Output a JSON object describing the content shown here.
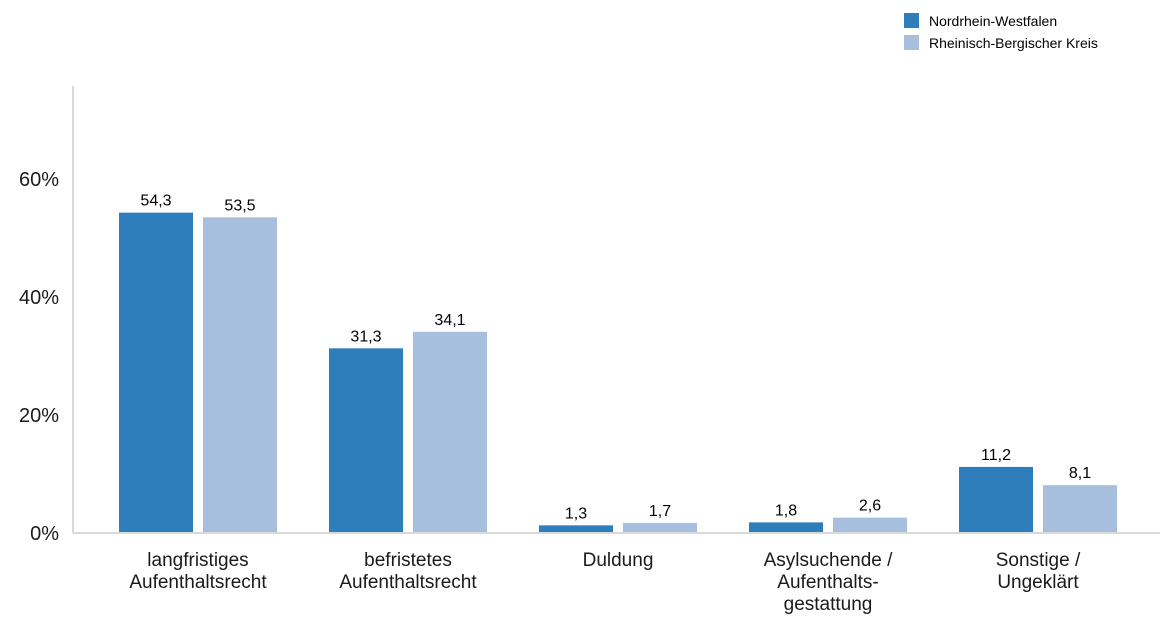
{
  "chart_data": {
    "type": "bar",
    "categories": [
      [
        "langfristiges",
        "Aufenthaltsrecht"
      ],
      [
        "befristetes",
        "Aufenthaltsrecht"
      ],
      [
        "Duldung"
      ],
      [
        "Asylsuchende /",
        "Aufenthalts-",
        "gestattung"
      ],
      [
        "Sonstige /",
        "Ungeklärt"
      ]
    ],
    "series": [
      {
        "name": "Nordrhein-Westfalen",
        "color": "#2e7ebb",
        "values": [
          54.3,
          31.3,
          1.3,
          1.8,
          11.2
        ],
        "labels": [
          "54,3",
          "31,3",
          "1,3",
          "1,8",
          "11,2"
        ]
      },
      {
        "name": "Rheinisch-Bergischer Kreis",
        "color": "#a8bedd",
        "values": [
          53.5,
          34.1,
          1.7,
          2.6,
          8.1
        ],
        "labels": [
          "53,5",
          "34,1",
          "1,7",
          "2,6",
          "8,1"
        ]
      }
    ],
    "y_ticks": [
      {
        "value": 0,
        "label": "0%"
      },
      {
        "value": 20,
        "label": "20%"
      },
      {
        "value": 40,
        "label": "40%"
      },
      {
        "value": 60,
        "label": "60%"
      }
    ],
    "ylim": [
      0,
      76
    ],
    "grid": false,
    "legend_position": "top-right",
    "axis_color": "#d9d9d9"
  }
}
